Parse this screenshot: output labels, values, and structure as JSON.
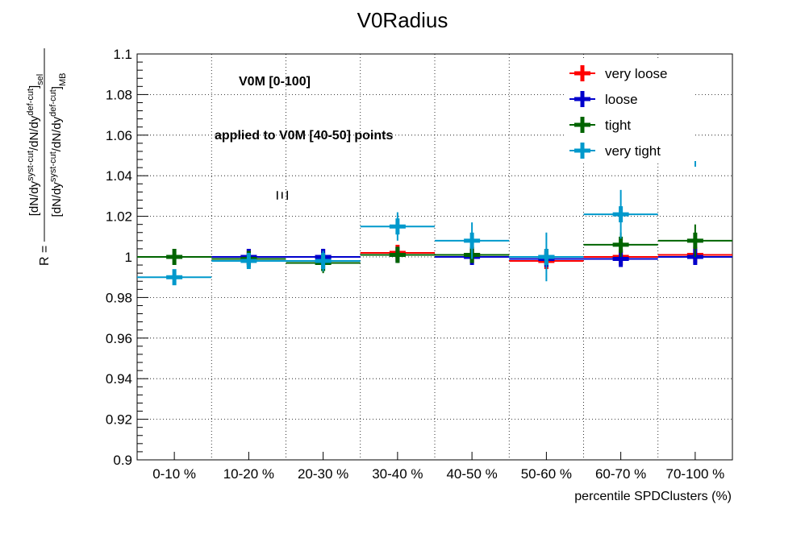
{
  "chart_data": {
    "type": "scatter",
    "title": "V0Radius",
    "xlabel": "percentile SPDClusters (%)",
    "ylabel": {
      "prefix": "R =",
      "numerator": "[dN/dy^{syst-cut}/dN/dy^{def-cut}]_{sel}",
      "denominator": "[dN/dy^{syst-cut}/dN/dy^{def-cut}]_{MB}"
    },
    "categories": [
      "0-10 %",
      "10-20 %",
      "20-30 %",
      "30-40 %",
      "40-50 %",
      "50-60 %",
      "60-70 %",
      "70-100 %"
    ],
    "ylim": [
      0.9,
      1.1
    ],
    "yticks": [
      "0.9",
      "0.92",
      "0.94",
      "0.96",
      "0.98",
      "1",
      "1.02",
      "1.04",
      "1.06",
      "1.08",
      "1.1"
    ],
    "grid": true,
    "legend_position": "top-right",
    "annotations": [
      "V0M [0-100]",
      "applied to V0M [40-50] points"
    ],
    "particle_symbol": "Ξ",
    "series": [
      {
        "name": "very loose",
        "color": "#ff0000",
        "values": [
          null,
          1.0,
          1.0,
          1.002,
          1.001,
          0.998,
          1.0,
          1.001
        ],
        "errors": [
          null,
          0.002,
          0.002,
          0.002,
          0.002,
          0.003,
          0.002,
          0.002
        ]
      },
      {
        "name": "loose",
        "color": "#0000cc",
        "values": [
          null,
          1.0,
          1.0,
          1.001,
          1.0,
          0.999,
          0.999,
          1.0
        ],
        "errors": [
          null,
          0.002,
          0.004,
          0.002,
          0.003,
          0.003,
          0.003,
          0.003
        ]
      },
      {
        "name": "tight",
        "color": "#006400",
        "values": [
          1.0,
          0.999,
          0.997,
          1.001,
          1.001,
          1.0,
          1.006,
          1.008
        ],
        "errors": [
          0.002,
          0.004,
          0.005,
          0.004,
          0.004,
          0.004,
          0.006,
          0.008
        ]
      },
      {
        "name": "very tight",
        "color": "#0099cc",
        "values": [
          0.99,
          0.998,
          0.998,
          1.015,
          1.008,
          1.0,
          1.021,
          null
        ],
        "errors": [
          0.002,
          0.003,
          0.005,
          0.007,
          0.009,
          0.012,
          0.012,
          null
        ]
      }
    ]
  }
}
